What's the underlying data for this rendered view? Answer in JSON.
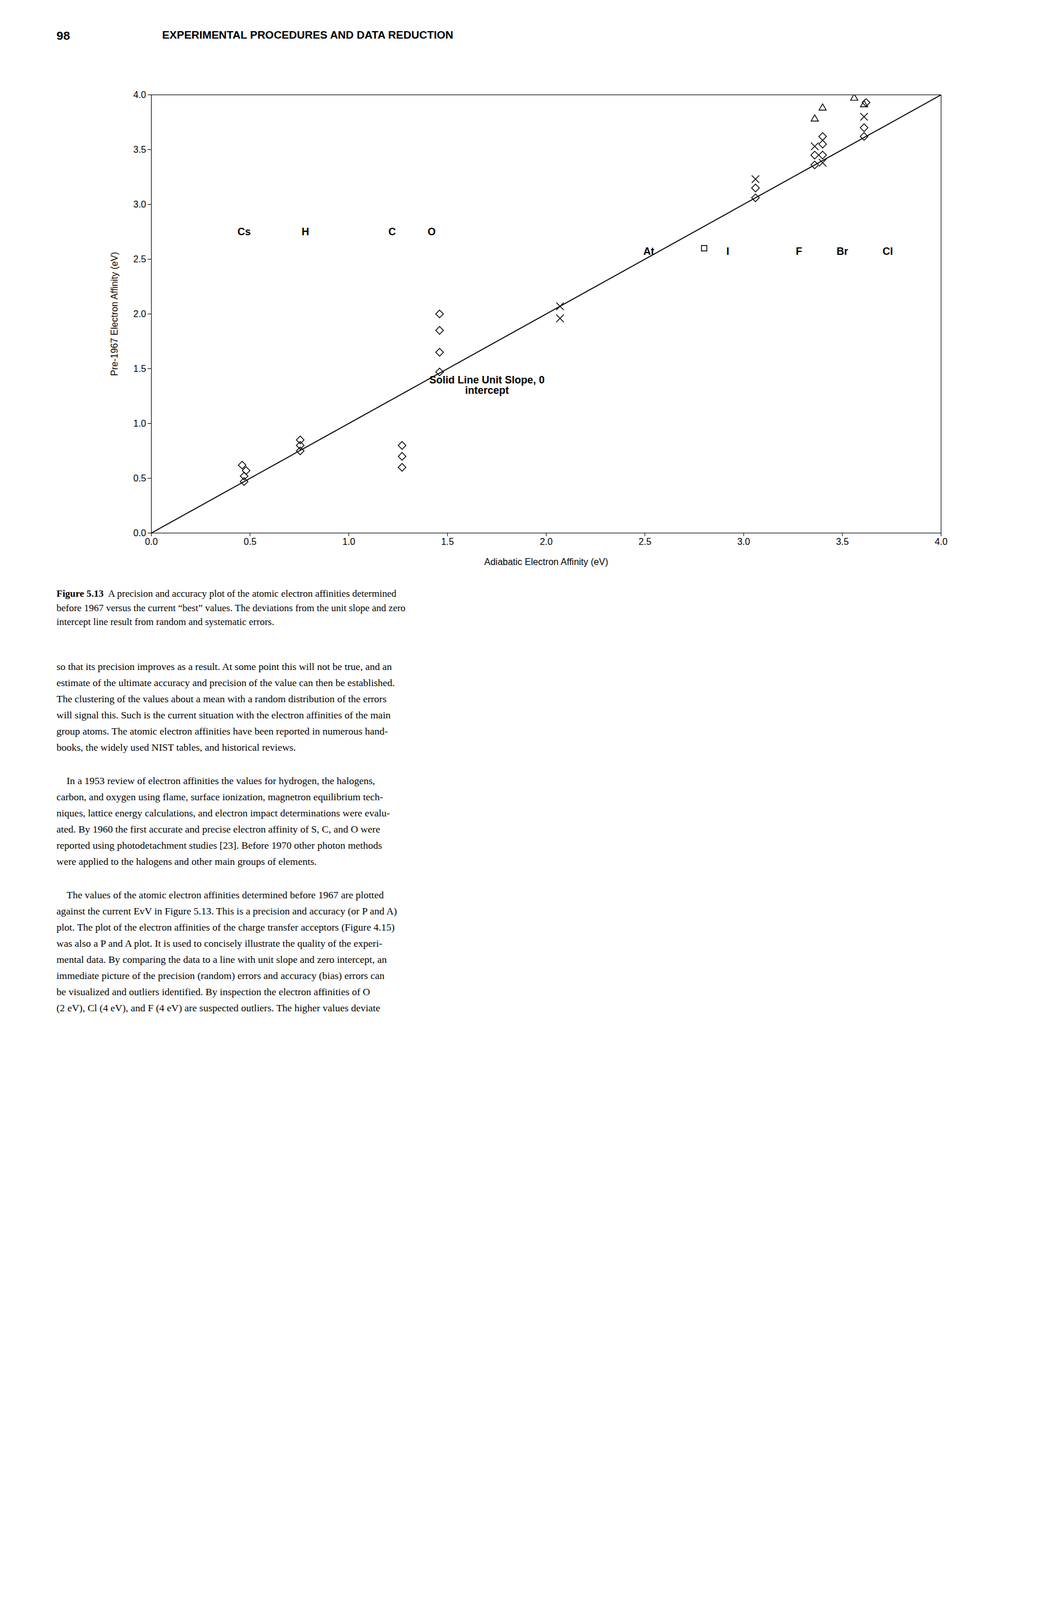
{
  "header": [
    "98",
    "EXPERIMENTAL PROCEDURES AND DATA REDUCTION"
  ],
  "caption": [
    "Figure 5.13",
    "  A precision and accuracy plot of the atomic electron affinities determined\nbefore 1967 versus the current “best” values. The deviations from the unit slope and zero\nintercept line result from random and systematic errors."
  ],
  "body": [
    "so that its precision improves as a result. At some point this will not be true, and an\nestimate of the ultimate accuracy and precision of the value can then be established.\nThe clustering of the values about a mean with a random distribution of the errors\nwill signal this. Such is the current situation with the electron affinities of the main\ngroup atoms. The atomic electron affinities have been reported in numerous hand-\nbooks, the widely used NIST tables, and historical reviews.",
    "    In a 1953 review of electron affinities the values for hydrogen, the halogens,\ncarbon, and oxygen using flame, surface ionization, magnetron equilibrium tech-\nniques, lattice energy calculations, and electron impact determinations were evalu-\nated. By 1960 the first accurate and precise electron affinity of S, C, and O were\nreported using photodetachment studies [23]. Before 1970 other photon methods\nwere applied to the halogens and other main groups of elements.",
    "    The values of the atomic electron affinities determined before 1967 are plotted\nagainst the current EvV in Figure 5.13. This is a precision and accuracy (or P and A)\nplot. The plot of the electron affinities of the charge transfer acceptors (Figure 4.15)\nwas also a P and A plot. It is used to concisely illustrate the quality of the experi-\nmental data. By comparing the data to a line with unit slope and zero intercept, an\nimmediate picture of the precision (random) errors and accuracy (bias) errors can\nbe visualized and outliers identified. By inspection the electron affinities of O\n(2 eV), Cl (4 eV), and F (4 eV) are suspected outliers. The higher values deviate"
  ],
  "chart_data": {
    "type": "scatter",
    "xlabel": "Adiabatic Electron Affinity (eV)",
    "ylabel": "Pre-1967 Electron Affinity (eV)",
    "xlim": [
      0,
      4
    ],
    "ylim": [
      0,
      4
    ],
    "xticks": [
      {
        "value": 0,
        "label": "0.0"
      },
      0.5,
      {
        "value": 1,
        "label": "1.0"
      },
      1.5,
      {
        "value": 2,
        "label": "2.0"
      },
      2.5,
      {
        "value": 3,
        "label": "3.0"
      },
      3.5,
      {
        "value": 4,
        "label": "4.0"
      }
    ],
    "yticks": [
      {
        "value": 0,
        "label": "0.0"
      },
      0.5,
      {
        "value": 1,
        "label": "1.0"
      },
      1.5,
      {
        "value": 2,
        "label": "2.0"
      },
      2.5,
      {
        "value": 3,
        "label": "3.0"
      },
      3.5,
      {
        "value": 4,
        "label": "4.0"
      }
    ],
    "series": [
      {
        "type": "line",
        "line_style": "solid",
        "x": [
          0,
          4
        ],
        "values": [
          0,
          4
        ]
      },
      {
        "type": "scatter",
        "x": [
          0.47,
          0.47,
          0.48,
          0.46,
          0.754,
          0.754,
          0.754,
          1.27,
          1.27,
          1.27,
          1.46,
          1.46,
          1.46,
          1.46,
          2.07,
          2.07,
          2.8,
          3.06,
          3.06,
          3.06,
          3.4,
          3.4,
          3.4,
          3.4,
          3.4,
          3.36,
          3.36,
          3.36,
          3.36,
          3.61,
          3.61,
          3.61,
          3.61,
          3.56,
          3.62
        ],
        "values": [
          0.47,
          0.52,
          0.57,
          0.62,
          0.75,
          0.8,
          0.85,
          0.6,
          0.7,
          0.8,
          1.47,
          1.65,
          1.85,
          2.0,
          1.96,
          2.07,
          2.6,
          3.06,
          3.15,
          3.23,
          3.38,
          3.45,
          3.55,
          3.62,
          3.88,
          3.36,
          3.45,
          3.53,
          3.78,
          3.62,
          3.7,
          3.8,
          3.91,
          3.97,
          3.93
        ],
        "markers": [
          "diamond",
          "diamond",
          "diamond",
          "diamond",
          "diamond",
          "diamond",
          "diamond",
          "diamond",
          "diamond",
          "diamond",
          "diamond",
          "diamond",
          "diamond",
          "diamond",
          "x",
          "x",
          "square",
          "diamond",
          "diamond",
          "x",
          "x",
          "diamond",
          "diamond",
          "diamond",
          "triangle",
          "diamond",
          "diamond",
          "x",
          "triangle",
          "diamond",
          "diamond",
          "x",
          "triangle",
          "triangle",
          "diamond"
        ]
      }
    ],
    "annotations": [
      {
        "text": "Cs",
        "x": 0.47,
        "y": 2.75
      },
      {
        "text": "H",
        "x": 0.78,
        "y": 2.75
      },
      {
        "text": "C",
        "x": 1.22,
        "y": 2.75
      },
      {
        "text": "O",
        "x": 1.42,
        "y": 2.75
      },
      {
        "text": "At",
        "x": 2.52,
        "y": 2.57
      },
      {
        "text": "I",
        "x": 2.92,
        "y": 2.57
      },
      {
        "text": "F",
        "x": 3.28,
        "y": 2.57
      },
      {
        "text": "Br",
        "x": 3.5,
        "y": 2.57
      },
      {
        "text": "Cl",
        "x": 3.73,
        "y": 2.57
      },
      {
        "text": "Solid Line Unit Slope, 0\nintercept",
        "x": 1.7,
        "y": 1.35,
        "anchor": "start"
      }
    ]
  }
}
